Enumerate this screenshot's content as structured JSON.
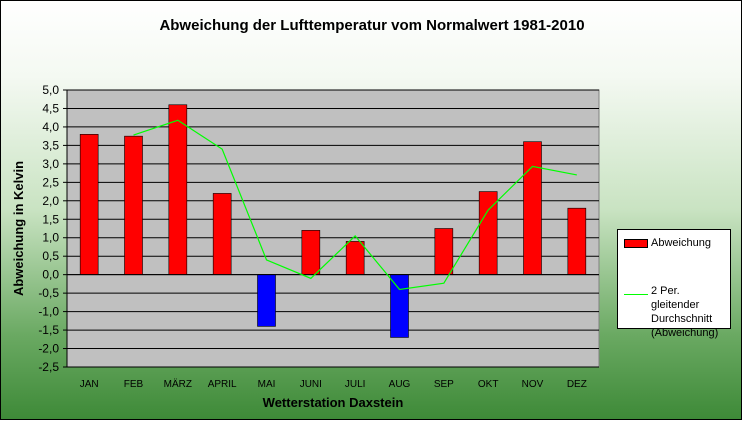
{
  "chart_data": {
    "type": "bar",
    "title": "Abweichung der Lufttemperatur vom Normalwert 1981-2010",
    "xlabel": "Wetterstation Daxstein",
    "ylabel": "Abweichung in Kelvin",
    "categories": [
      "JAN",
      "FEB",
      "MÄRZ",
      "APRIL",
      "MAI",
      "JUNI",
      "JULI",
      "AUG",
      "SEP",
      "OKT",
      "NOV",
      "DEZ"
    ],
    "series": [
      {
        "name": "Abweichung",
        "type": "bar",
        "values": [
          3.8,
          3.75,
          4.6,
          2.2,
          -1.4,
          1.2,
          0.9,
          -1.7,
          1.25,
          2.25,
          3.6,
          1.8
        ],
        "color": "#ff0000",
        "negative_color": "#0000ff"
      },
      {
        "name": "2 Per. gleitender\nDurchschnitt\n(Abweichung)",
        "type": "line",
        "values": [
          null,
          3.78,
          4.18,
          3.4,
          0.4,
          -0.1,
          1.05,
          -0.4,
          -0.23,
          1.75,
          2.93,
          2.7
        ],
        "color": "#00ff00"
      }
    ],
    "ylim": [
      -2.5,
      5.0
    ],
    "yticks": [
      "-2,5",
      "-2,0",
      "-1,5",
      "-1,0",
      "-0,5",
      "0,0",
      "0,5",
      "1,0",
      "1,5",
      "2,0",
      "2,5",
      "3,0",
      "3,5",
      "4,0",
      "4,5",
      "5,0"
    ],
    "grid": true,
    "legend_position": "right",
    "plot_background": "#c0c0c0"
  }
}
